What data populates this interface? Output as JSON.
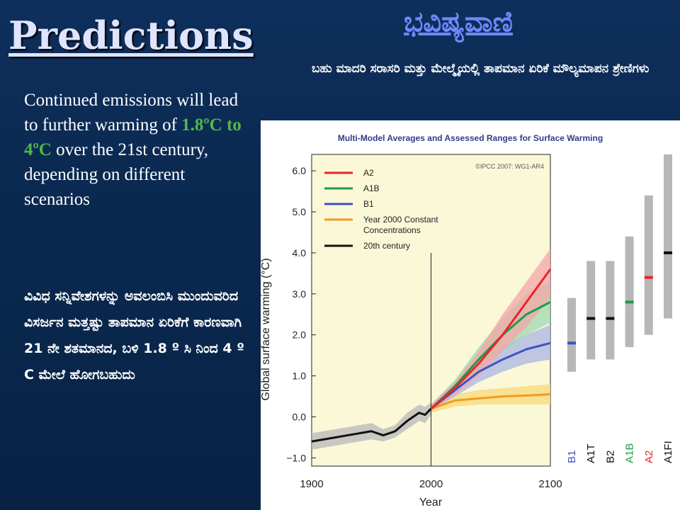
{
  "slide": {
    "title": "Predictions",
    "kn_title": "ಭವಿಷ್ಯವಾಣಿ",
    "kn_subtitle": "ಬಹು ಮಾದರಿ ಸರಾಸರಿ ಮತ್ತು ಮೇಲ್ಮೈಯಲ್ಲಿ ತಾಪಮಾನ ಏರಿಕೆ ಮೌಲ್ಯಮಾಪನ ಶ್ರೇಣಿಗಳು",
    "en_text": {
      "part1": "Continued emissions will lead to further warming of ",
      "highlight": "1.8ºC to 4ºC",
      "part2": " over the 21st century, depending on different scenarios"
    },
    "kn_text": "ವಿವಿಧ ಸನ್ನಿವೇಶಗಳನ್ನು ಅವಲಂಬಿಸಿ ಮುಂದುವರಿದ ವಿಸರ್ಜನ ಮತ್ತಷ್ಟು ತಾಪಮಾನ ಏರಿಕೆಗೆ ಕಾರಣವಾಗಿ 21 ನೇ ಶತಮಾನದ, ಬಳಿ 1.8 º ಸಿ ನಿಂದ 4 º C ಮೇಲೆ ಹೋಗಬಹುದು",
    "colors": {
      "highlight": "#51b84a",
      "title": "#dfe4ff",
      "kn_title": "#6f88ff"
    }
  },
  "chart_data": {
    "type": "line",
    "title": "Multi-Model Averages and Assessed Ranges for Surface Warming",
    "credit": "©IPCC 2007: WG1-AR4",
    "xlabel": "Year",
    "ylabel": "Global surface warming (°C)",
    "xlim": [
      1900,
      2100
    ],
    "ylim": [
      -1.2,
      6.4
    ],
    "xticks": [
      "1900",
      "2000",
      "2100"
    ],
    "yticks": [
      "6.0",
      "5.0",
      "4.0",
      "3.0",
      "2.0",
      "1.0",
      "0.0",
      "−1.0"
    ],
    "legend_position": "top-left",
    "series": [
      {
        "name": "A2",
        "color": "#e8252a",
        "band": "#f4a6a8",
        "x": [
          2000,
          2020,
          2040,
          2060,
          2080,
          2100
        ],
        "y": [
          0.2,
          0.7,
          1.3,
          2.0,
          2.8,
          3.6
        ],
        "lo": [
          0.15,
          0.55,
          1.0,
          1.6,
          2.2,
          2.9
        ],
        "hi": [
          0.3,
          0.85,
          1.6,
          2.5,
          3.3,
          4.1
        ]
      },
      {
        "name": "A1B",
        "color": "#1f9a4a",
        "band": "#9ed8b2",
        "x": [
          2000,
          2020,
          2040,
          2060,
          2080,
          2100
        ],
        "y": [
          0.2,
          0.75,
          1.4,
          2.0,
          2.5,
          2.8
        ],
        "lo": [
          0.15,
          0.6,
          1.1,
          1.6,
          2.0,
          2.3
        ],
        "hi": [
          0.3,
          0.9,
          1.7,
          2.4,
          3.0,
          3.3
        ]
      },
      {
        "name": "B1",
        "color": "#3f51c4",
        "band": "#a9b5e6",
        "x": [
          2000,
          2020,
          2040,
          2060,
          2080,
          2100
        ],
        "y": [
          0.2,
          0.65,
          1.1,
          1.4,
          1.65,
          1.8
        ],
        "lo": [
          0.15,
          0.5,
          0.85,
          1.1,
          1.3,
          1.4
        ],
        "hi": [
          0.3,
          0.8,
          1.35,
          1.75,
          2.0,
          2.25
        ]
      },
      {
        "name": "Year 2000 Constant Concentrations",
        "color": "#f39a1e",
        "band": "#f7da7a",
        "x": [
          2000,
          2020,
          2040,
          2060,
          2080,
          2100
        ],
        "y": [
          0.2,
          0.4,
          0.45,
          0.5,
          0.52,
          0.55
        ],
        "lo": [
          0.1,
          0.25,
          0.3,
          0.3,
          0.3,
          0.3
        ],
        "hi": [
          0.3,
          0.55,
          0.65,
          0.7,
          0.75,
          0.8
        ]
      },
      {
        "name": "20th century",
        "color": "#111111",
        "band": "#b8b8b8",
        "x": [
          1900,
          1910,
          1920,
          1930,
          1940,
          1950,
          1960,
          1970,
          1980,
          1990,
          1995,
          2000
        ],
        "y": [
          -0.6,
          -0.55,
          -0.5,
          -0.45,
          -0.4,
          -0.35,
          -0.45,
          -0.35,
          -0.1,
          0.1,
          0.05,
          0.2
        ],
        "lo": [
          -0.8,
          -0.75,
          -0.7,
          -0.65,
          -0.6,
          -0.55,
          -0.6,
          -0.5,
          -0.3,
          -0.1,
          -0.15,
          0.05
        ],
        "hi": [
          -0.4,
          -0.35,
          -0.3,
          -0.25,
          -0.2,
          -0.15,
          -0.3,
          -0.2,
          0.1,
          0.3,
          0.25,
          0.35
        ]
      }
    ],
    "ranges": [
      {
        "label": "B1",
        "low": 1.1,
        "high": 2.9,
        "best": 1.8,
        "best_color": "#3f51c4",
        "label_color": "#3f51c4"
      },
      {
        "label": "A1T",
        "low": 1.4,
        "high": 3.8,
        "best": 2.4,
        "best_color": "#111111",
        "label_color": "#111111"
      },
      {
        "label": "B2",
        "low": 1.4,
        "high": 3.8,
        "best": 2.4,
        "best_color": "#111111",
        "label_color": "#111111"
      },
      {
        "label": "A1B",
        "low": 1.7,
        "high": 4.4,
        "best": 2.8,
        "best_color": "#1f9a4a",
        "label_color": "#1f9a4a"
      },
      {
        "label": "A2",
        "low": 2.0,
        "high": 5.4,
        "best": 3.4,
        "best_color": "#e8252a",
        "label_color": "#e8252a"
      },
      {
        "label": "A1FI",
        "low": 2.4,
        "high": 6.4,
        "best": 4.0,
        "best_color": "#111111",
        "label_color": "#111111"
      }
    ]
  }
}
